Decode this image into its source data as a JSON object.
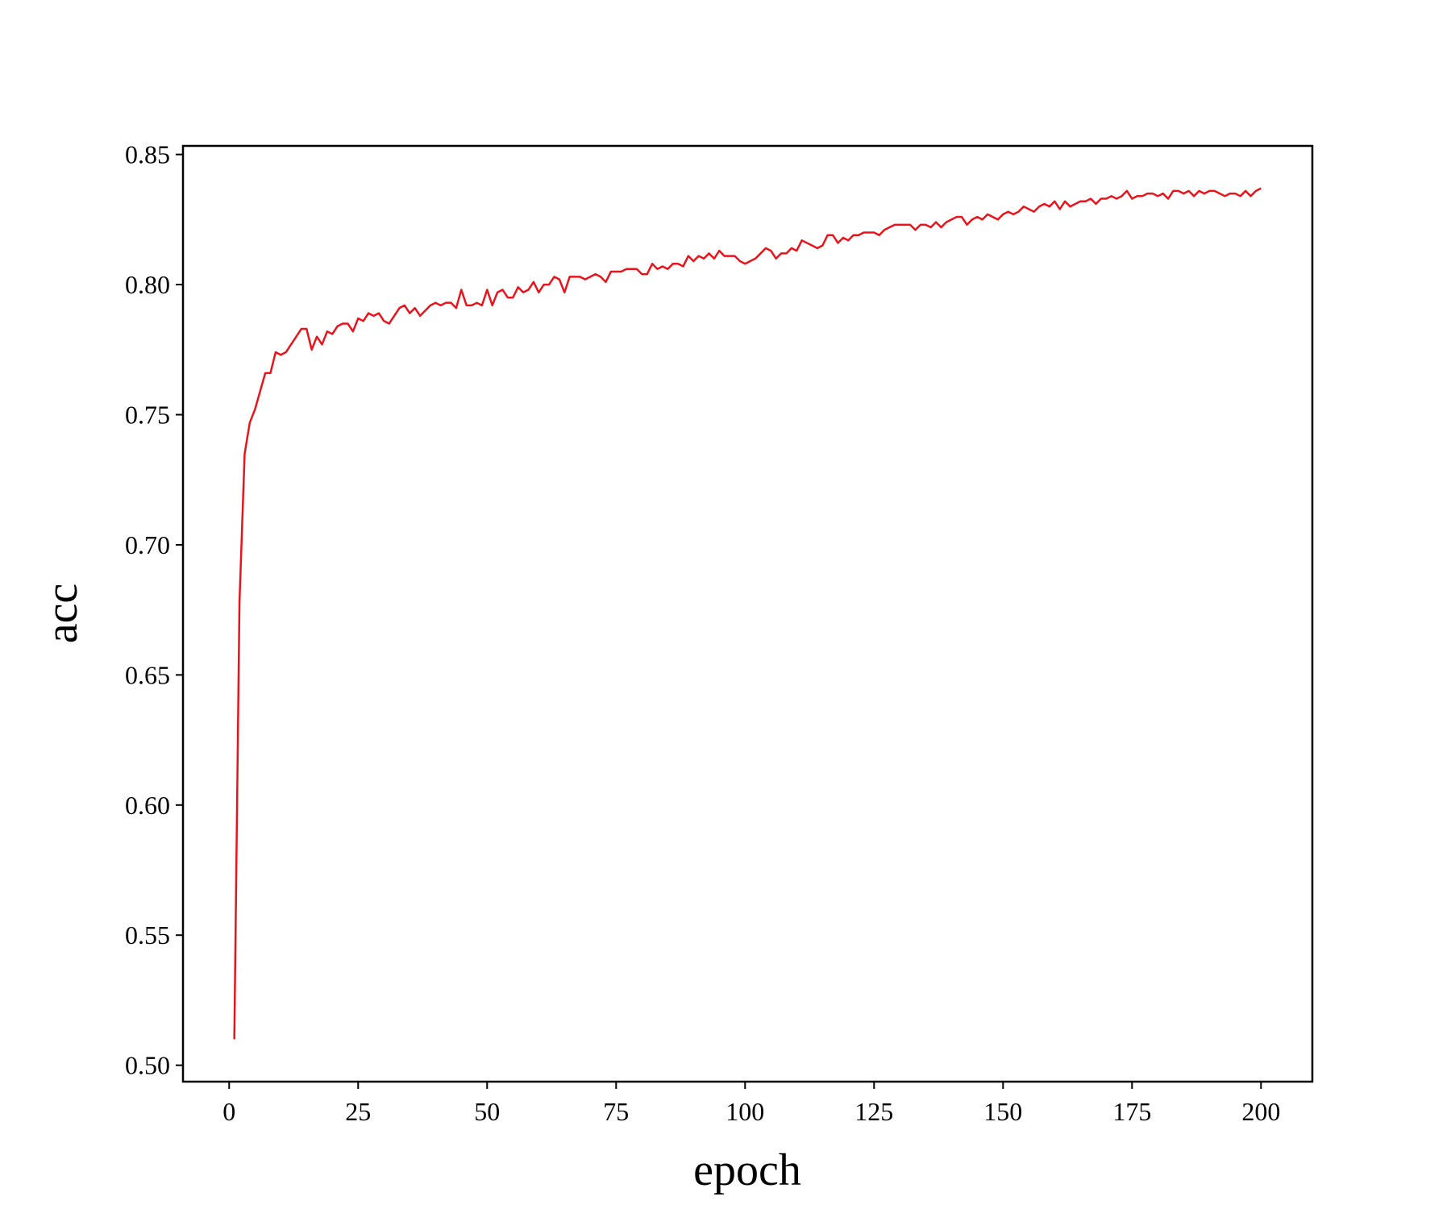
{
  "chart_data": {
    "type": "line",
    "x_label": "epoch",
    "y_label": "acc",
    "color": "#e8141c",
    "xlim": [
      -8.95,
      209.95
    ],
    "ylim": [
      0.4937,
      0.8533
    ],
    "xticks": [
      0,
      25,
      50,
      75,
      100,
      125,
      150,
      175,
      200
    ],
    "yticks": [
      {
        "value": 0.5,
        "label": "0.50"
      },
      0.55,
      {
        "value": 0.6,
        "label": "0.60"
      },
      0.65,
      {
        "value": 0.7,
        "label": "0.70"
      },
      0.75,
      {
        "value": 0.8,
        "label": "0.80"
      },
      0.85
    ],
    "grid": false,
    "x": [
      1,
      2,
      3,
      4,
      5,
      6,
      7,
      8,
      9,
      10,
      11,
      12,
      13,
      14,
      15,
      16,
      17,
      18,
      19,
      20,
      21,
      22,
      23,
      24,
      25,
      26,
      27,
      28,
      29,
      30,
      31,
      32,
      33,
      34,
      35,
      36,
      37,
      38,
      39,
      40,
      41,
      42,
      43,
      44,
      45,
      46,
      47,
      48,
      49,
      50,
      51,
      52,
      53,
      54,
      55,
      56,
      57,
      58,
      59,
      60,
      61,
      62,
      63,
      64,
      65,
      66,
      67,
      68,
      69,
      70,
      71,
      72,
      73,
      74,
      75,
      76,
      77,
      78,
      79,
      80,
      81,
      82,
      83,
      84,
      85,
      86,
      87,
      88,
      89,
      90,
      91,
      92,
      93,
      94,
      95,
      96,
      97,
      98,
      99,
      100,
      101,
      102,
      103,
      104,
      105,
      106,
      107,
      108,
      109,
      110,
      111,
      112,
      113,
      114,
      115,
      116,
      117,
      118,
      119,
      120,
      121,
      122,
      123,
      124,
      125,
      126,
      127,
      128,
      129,
      130,
      131,
      132,
      133,
      134,
      135,
      136,
      137,
      138,
      139,
      140,
      141,
      142,
      143,
      144,
      145,
      146,
      147,
      148,
      149,
      150,
      151,
      152,
      153,
      154,
      155,
      156,
      157,
      158,
      159,
      160,
      161,
      162,
      163,
      164,
      165,
      166,
      167,
      168,
      169,
      170,
      171,
      172,
      173,
      174,
      175,
      176,
      177,
      178,
      179,
      180,
      181,
      182,
      183,
      184,
      185,
      186,
      187,
      188,
      189,
      190,
      191,
      192,
      193,
      194,
      195,
      196,
      197,
      198,
      199,
      200
    ],
    "values": [
      0.51,
      0.678,
      0.735,
      0.747,
      0.752,
      0.759,
      0.766,
      0.766,
      0.774,
      0.773,
      0.774,
      0.777,
      0.78,
      0.783,
      0.783,
      0.775,
      0.78,
      0.777,
      0.782,
      0.781,
      0.784,
      0.785,
      0.785,
      0.782,
      0.787,
      0.786,
      0.789,
      0.788,
      0.789,
      0.786,
      0.785,
      0.788,
      0.791,
      0.792,
      0.789,
      0.791,
      0.788,
      0.79,
      0.792,
      0.793,
      0.792,
      0.793,
      0.793,
      0.791,
      0.798,
      0.792,
      0.792,
      0.793,
      0.792,
      0.798,
      0.792,
      0.797,
      0.798,
      0.795,
      0.795,
      0.799,
      0.797,
      0.798,
      0.801,
      0.797,
      0.8,
      0.8,
      0.803,
      0.802,
      0.797,
      0.803,
      0.803,
      0.803,
      0.802,
      0.803,
      0.804,
      0.803,
      0.801,
      0.805,
      0.805,
      0.805,
      0.806,
      0.806,
      0.806,
      0.804,
      0.804,
      0.808,
      0.806,
      0.807,
      0.806,
      0.808,
      0.808,
      0.807,
      0.811,
      0.809,
      0.811,
      0.81,
      0.812,
      0.81,
      0.813,
      0.811,
      0.811,
      0.811,
      0.809,
      0.808,
      0.809,
      0.81,
      0.812,
      0.814,
      0.813,
      0.81,
      0.812,
      0.812,
      0.814,
      0.813,
      0.817,
      0.816,
      0.815,
      0.814,
      0.815,
      0.819,
      0.819,
      0.816,
      0.818,
      0.817,
      0.819,
      0.819,
      0.82,
      0.82,
      0.82,
      0.819,
      0.821,
      0.822,
      0.823,
      0.823,
      0.823,
      0.823,
      0.821,
      0.823,
      0.823,
      0.822,
      0.824,
      0.822,
      0.824,
      0.825,
      0.826,
      0.826,
      0.823,
      0.825,
      0.826,
      0.825,
      0.827,
      0.826,
      0.825,
      0.827,
      0.828,
      0.827,
      0.828,
      0.83,
      0.829,
      0.828,
      0.83,
      0.831,
      0.83,
      0.832,
      0.829,
      0.832,
      0.83,
      0.831,
      0.832,
      0.832,
      0.833,
      0.831,
      0.833,
      0.833,
      0.834,
      0.833,
      0.834,
      0.836,
      0.833,
      0.834,
      0.834,
      0.835,
      0.835,
      0.834,
      0.835,
      0.833,
      0.836,
      0.836,
      0.835,
      0.836,
      0.834,
      0.836,
      0.835,
      0.836,
      0.836,
      0.835,
      0.834,
      0.835,
      0.835,
      0.834,
      0.836,
      0.834,
      0.836,
      0.837
    ]
  }
}
